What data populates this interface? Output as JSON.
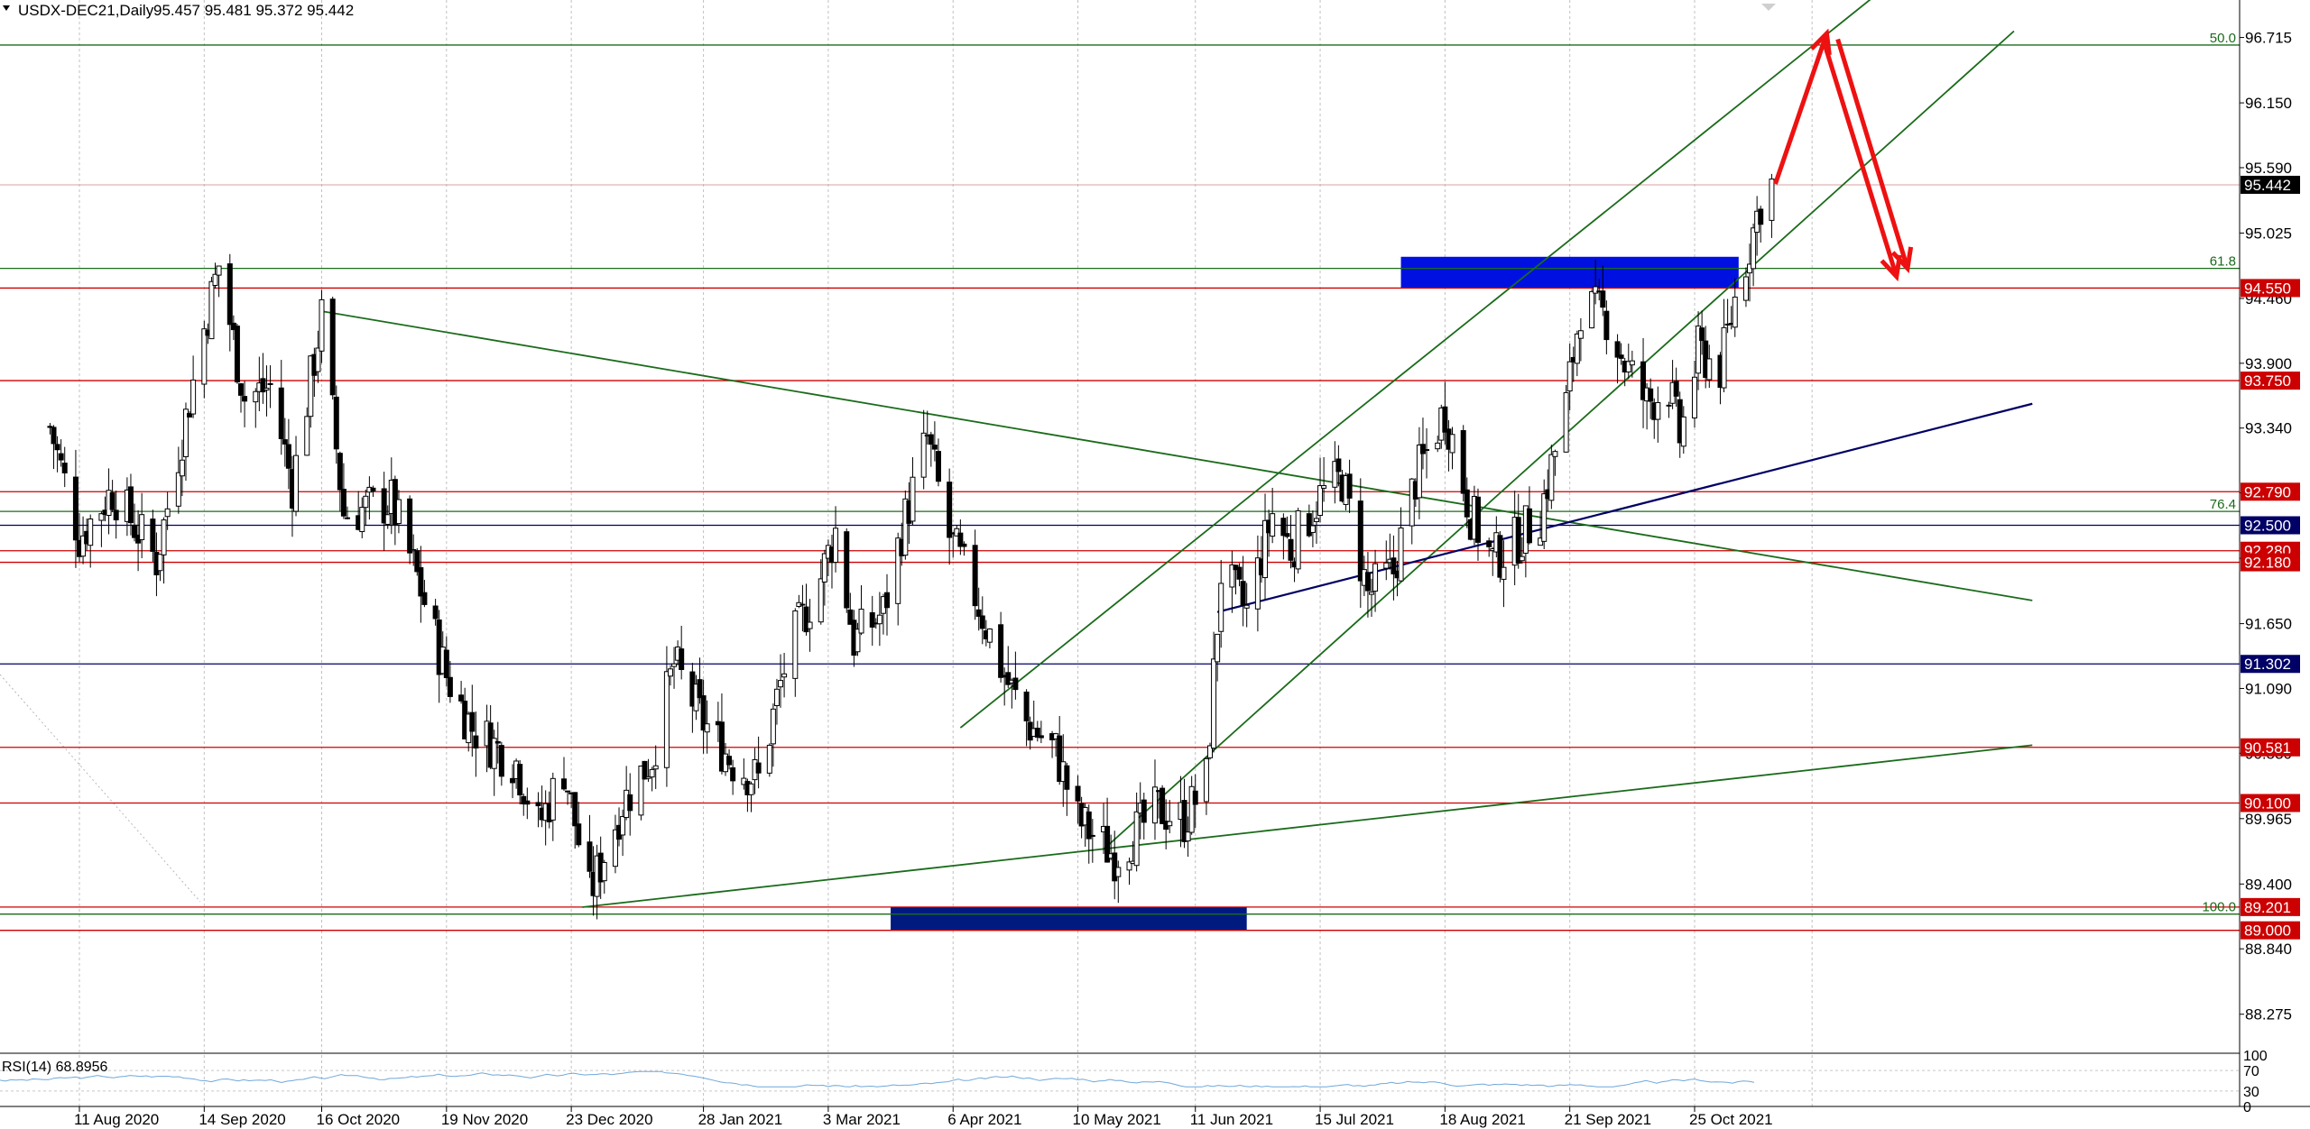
{
  "header": {
    "symbol": "USDX-DEC21,Daily",
    "ohlc": "95.457 95.481 95.372 95.442"
  },
  "rsi": {
    "label": "RSI(14) 68.8956",
    "scale": [
      "100",
      "70",
      "30",
      "0"
    ]
  },
  "colors": {
    "candle": "#000000",
    "grid": "#c0c0c0",
    "trend_green": "#1a6b1a",
    "level_red": "#cc0000",
    "level_navy": "#000066",
    "zone_blue": "#0010e0",
    "zone_navy": "#001a80",
    "arrow_red": "#ee1111",
    "rsi_line": "#6fa8dc",
    "current_price_bg": "#000000"
  },
  "chart_data": {
    "type": "candlestick",
    "ylim": [
      88.0,
      97.0
    ],
    "yticks": [
      "96.715",
      "96.150",
      "95.590",
      "95.025",
      "94.460",
      "93.900",
      "93.340",
      "92.780",
      "92.215",
      "91.650",
      "91.090",
      "90.530",
      "89.965",
      "89.400",
      "88.840",
      "88.275"
    ],
    "xticks": [
      "11 Aug 2020",
      "14 Sep 2020",
      "16 Oct 2020",
      "19 Nov 2020",
      "23 Dec 2020",
      "28 Jan 2021",
      "3 Mar 2021",
      "6 Apr 2021",
      "10 May 2021",
      "11 Jun 2021",
      "15 Jul 2021",
      "18 Aug 2021",
      "21 Sep 2021",
      "25 Oct 2021"
    ],
    "current_price": "95.442",
    "levels": [
      {
        "label": "94.550",
        "value": 94.55,
        "color": "red"
      },
      {
        "label": "93.750",
        "value": 93.75,
        "color": "red"
      },
      {
        "label": "92.790",
        "value": 92.79,
        "color": "red"
      },
      {
        "label": "92.500",
        "value": 92.5,
        "color": "navy"
      },
      {
        "label": "92.280",
        "value": 92.28,
        "color": "red"
      },
      {
        "label": "92.180",
        "value": 92.18,
        "color": "red"
      },
      {
        "label": "91.302",
        "value": 91.302,
        "color": "navy"
      },
      {
        "label": "90.581",
        "value": 90.581,
        "color": "red"
      },
      {
        "label": "90.100",
        "value": 90.1,
        "color": "red"
      },
      {
        "label": "89.201",
        "value": 89.201,
        "color": "red"
      },
      {
        "label": "89.000",
        "value": 89.0,
        "color": "red"
      }
    ],
    "fibo": [
      {
        "label": "50.0",
        "value": 96.65
      },
      {
        "label": "61.8",
        "value": 94.72
      },
      {
        "label": "76.4",
        "value": 92.62
      },
      {
        "label": "100.0",
        "value": 89.14
      }
    ],
    "ohlc_anchors": [
      [
        "2020-08-03",
        93.35
      ],
      [
        "2020-08-11",
        92.4
      ],
      [
        "2020-08-20",
        92.8
      ],
      [
        "2020-09-01",
        92.2
      ],
      [
        "2020-09-14",
        94.2
      ],
      [
        "2020-09-18",
        94.75
      ],
      [
        "2020-09-25",
        93.6
      ],
      [
        "2020-10-02",
        93.7
      ],
      [
        "2020-10-08",
        92.85
      ],
      [
        "2020-10-16",
        94.3
      ],
      [
        "2020-10-22",
        92.6
      ],
      [
        "2020-11-04",
        92.7
      ],
      [
        "2020-11-11",
        92.05
      ],
      [
        "2020-11-19",
        91.2
      ],
      [
        "2020-11-26",
        90.75
      ],
      [
        "2020-12-08",
        90.45
      ],
      [
        "2020-12-14",
        89.9
      ],
      [
        "2020-12-21",
        90.4
      ],
      [
        "2020-12-28",
        89.3
      ],
      [
        "2021-01-06",
        90.1
      ],
      [
        "2021-01-14",
        90.5
      ],
      [
        "2021-01-20",
        91.3
      ],
      [
        "2021-01-28",
        90.8
      ],
      [
        "2021-02-05",
        90.45
      ],
      [
        "2021-02-12",
        90.3
      ],
      [
        "2021-02-20",
        91.4
      ],
      [
        "2021-03-01",
        92.05
      ],
      [
        "2021-03-05",
        92.45
      ],
      [
        "2021-03-10",
        91.5
      ],
      [
        "2021-03-18",
        91.75
      ],
      [
        "2021-03-23",
        92.45
      ],
      [
        "2021-03-30",
        93.25
      ],
      [
        "2021-04-05",
        92.4
      ],
      [
        "2021-04-12",
        91.9
      ],
      [
        "2021-04-20",
        91.2
      ],
      [
        "2021-04-26",
        90.8
      ],
      [
        "2021-05-04",
        90.55
      ],
      [
        "2021-05-10",
        89.95
      ],
      [
        "2021-05-20",
        89.65
      ],
      [
        "2021-05-26",
        89.85
      ],
      [
        "2021-06-01",
        90.05
      ],
      [
        "2021-06-08",
        89.95
      ],
      [
        "2021-06-14",
        90.3
      ],
      [
        "2021-06-18",
        92.1
      ],
      [
        "2021-06-25",
        91.75
      ],
      [
        "2021-07-02",
        92.6
      ],
      [
        "2021-07-07",
        92.3
      ],
      [
        "2021-07-15",
        92.75
      ],
      [
        "2021-07-21",
        92.9
      ],
      [
        "2021-07-28",
        91.9
      ],
      [
        "2021-08-04",
        92.1
      ],
      [
        "2021-08-10",
        92.9
      ],
      [
        "2021-08-18",
        93.5
      ],
      [
        "2021-08-25",
        92.6
      ],
      [
        "2021-08-31",
        92.2
      ],
      [
        "2021-09-06",
        92.35
      ],
      [
        "2021-09-13",
        92.6
      ],
      [
        "2021-09-20",
        93.55
      ],
      [
        "2021-09-24",
        94.4
      ],
      [
        "2021-10-01",
        94.3
      ],
      [
        "2021-10-06",
        93.9
      ],
      [
        "2021-10-12",
        93.55
      ],
      [
        "2021-10-18",
        93.7
      ],
      [
        "2021-10-21",
        93.25
      ],
      [
        "2021-10-26",
        94.0
      ],
      [
        "2021-11-01",
        93.85
      ],
      [
        "2021-11-05",
        94.45
      ],
      [
        "2021-11-08",
        94.8
      ],
      [
        "2021-11-12",
        95.3
      ],
      [
        "2021-11-15",
        95.442
      ]
    ],
    "trendlines": [
      {
        "name": "channel-upper",
        "p1": [
          "2021-04-08",
          90.75
        ],
        "p2": [
          "2021-12-20",
          97.25
        ],
        "color": "green"
      },
      {
        "name": "channel-lower",
        "p1": [
          "2021-05-17",
          89.7
        ],
        "p2": [
          "2022-01-20",
          96.77
        ],
        "color": "green"
      },
      {
        "name": "descending-trend",
        "p1": [
          "2020-10-16",
          94.35
        ],
        "p2": [
          "2022-01-25",
          91.85
        ],
        "color": "green"
      },
      {
        "name": "rising-support",
        "p1": [
          "2020-12-26",
          89.2
        ],
        "p2": [
          "2022-01-25",
          90.6
        ],
        "color": "green"
      },
      {
        "name": "rising-navy",
        "p1": [
          "2021-06-17",
          91.75
        ],
        "p2": [
          "2022-01-25",
          93.55
        ],
        "color": "navy"
      }
    ],
    "zones": [
      {
        "name": "supply-zone",
        "t1": "2021-08-06",
        "t2": "2021-11-06",
        "v1": 94.55,
        "v2": 94.82,
        "color": "blue"
      },
      {
        "name": "demand-zone",
        "t1": "2021-03-20",
        "t2": "2021-06-25",
        "v1": 89.0,
        "v2": 89.2,
        "color": "navy"
      }
    ],
    "forecast_arrows": [
      {
        "name": "arrow-up",
        "from": [
          "2021-11-16",
          95.45
        ],
        "to": [
          "2021-11-30",
          96.75
        ]
      },
      {
        "name": "arrow-down-1",
        "from": [
          "2021-11-29",
          96.7
        ],
        "to": [
          "2021-12-19",
          94.65
        ]
      },
      {
        "name": "arrow-down-2",
        "from": [
          "2021-12-03",
          96.7
        ],
        "to": [
          "2021-12-22",
          94.72
        ]
      }
    ]
  }
}
